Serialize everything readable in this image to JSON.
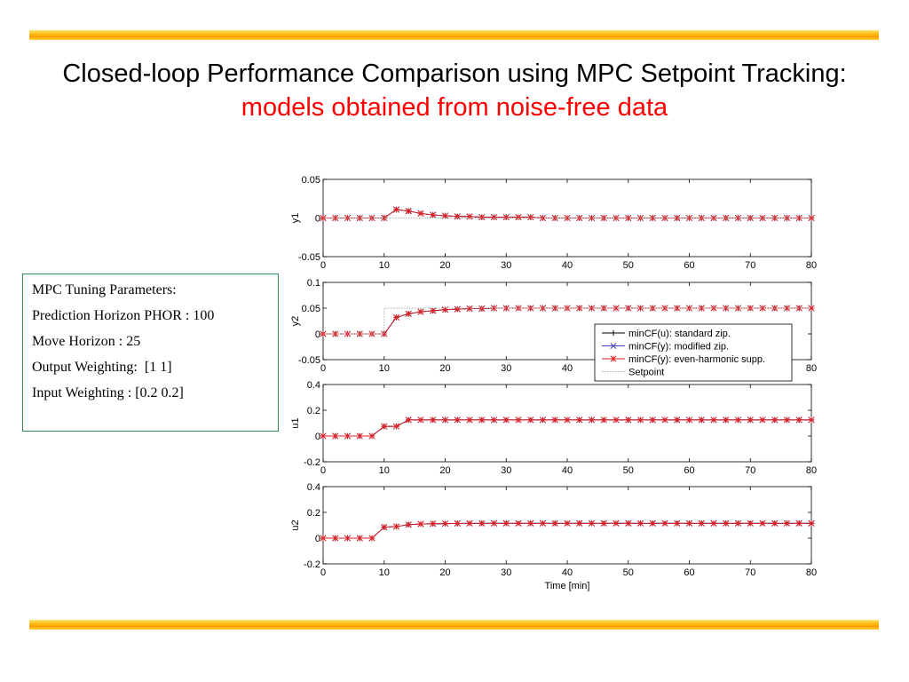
{
  "slide": {
    "title_black": "Closed-loop Performance Comparison using MPC Setpoint Tracking:",
    "title_red": "models obtained from noise-free data"
  },
  "params": {
    "heading": "MPC Tuning Parameters:",
    "lines": [
      "Prediction Horizon PHOR : 100",
      "Move Horizon : 25",
      "Output Weighting:  [1 1]",
      "Input Weighting : [0.2 0.2]"
    ]
  },
  "colors": {
    "accent_red": "#ff0000",
    "box_border": "#2e8b57",
    "series_black": "#000000",
    "series_blue": "#4040c0",
    "series_red": "#e02020",
    "setpoint": "#aaaaaa"
  },
  "chart_data": [
    {
      "type": "line",
      "ylabel": "y1",
      "xlabel": "",
      "xlim": [
        0,
        80
      ],
      "ylim": [
        -0.05,
        0.05
      ],
      "xticks": [
        "0",
        "10",
        "20",
        "30",
        "40",
        "50",
        "60",
        "70",
        "80"
      ],
      "yticks": [
        "0.05",
        "0",
        "-0.05"
      ],
      "x": [
        0,
        2,
        4,
        6,
        8,
        10,
        12,
        14,
        16,
        18,
        20,
        22,
        24,
        26,
        28,
        30,
        32,
        34,
        36,
        38,
        40,
        42,
        44,
        46,
        48,
        50,
        52,
        54,
        56,
        58,
        60,
        62,
        64,
        66,
        68,
        70,
        72,
        74,
        76,
        78,
        80
      ],
      "series": [
        {
          "name": "minCF(u): standard zip.",
          "values": [
            0,
            0,
            0,
            0,
            0,
            0,
            0.011,
            0.009,
            0.006,
            0.004,
            0.003,
            0.002,
            0.002,
            0.001,
            0.001,
            0.001,
            0.001,
            0.001,
            0,
            0,
            0,
            0,
            0,
            0,
            0,
            0,
            0,
            0,
            0,
            0,
            0,
            0,
            0,
            0,
            0,
            0,
            0,
            0,
            0,
            0,
            0
          ]
        },
        {
          "name": "minCF(y): modified zip.",
          "values": [
            0,
            0,
            0,
            0,
            0,
            0,
            0.011,
            0.009,
            0.006,
            0.004,
            0.003,
            0.002,
            0.002,
            0.001,
            0.001,
            0.001,
            0.001,
            0.001,
            0,
            0,
            0,
            0,
            0,
            0,
            0,
            0,
            0,
            0,
            0,
            0,
            0,
            0,
            0,
            0,
            0,
            0,
            0,
            0,
            0,
            0,
            0
          ]
        },
        {
          "name": "minCF(y): even-harmonic supp.",
          "values": [
            0,
            0,
            0,
            0,
            0,
            0,
            0.011,
            0.009,
            0.006,
            0.004,
            0.003,
            0.002,
            0.002,
            0.001,
            0.001,
            0.001,
            0.001,
            0.001,
            0,
            0,
            0,
            0,
            0,
            0,
            0,
            0,
            0,
            0,
            0,
            0,
            0,
            0,
            0,
            0,
            0,
            0,
            0,
            0,
            0,
            0,
            0
          ]
        },
        {
          "name": "Setpoint",
          "step": [
            [
              0,
              0
            ],
            [
              80,
              0
            ]
          ]
        }
      ]
    },
    {
      "type": "line",
      "ylabel": "y2",
      "xlabel": "",
      "xlim": [
        0,
        80
      ],
      "ylim": [
        -0.05,
        0.1
      ],
      "xticks": [
        "0",
        "10",
        "20",
        "30",
        "40",
        "50",
        "60",
        "70",
        "80"
      ],
      "yticks": [
        "0.1",
        "0.05",
        "0",
        "-0.05"
      ],
      "x": [
        0,
        2,
        4,
        6,
        8,
        10,
        12,
        14,
        16,
        18,
        20,
        22,
        24,
        26,
        28,
        30,
        32,
        34,
        36,
        38,
        40,
        42,
        44,
        46,
        48,
        50,
        52,
        54,
        56,
        58,
        60,
        62,
        64,
        66,
        68,
        70,
        72,
        74,
        76,
        78,
        80
      ],
      "series": [
        {
          "name": "minCF(u): standard zip.",
          "values": [
            0,
            0,
            0,
            0,
            0,
            0,
            0.032,
            0.039,
            0.043,
            0.045,
            0.047,
            0.048,
            0.049,
            0.049,
            0.05,
            0.05,
            0.05,
            0.05,
            0.05,
            0.05,
            0.05,
            0.05,
            0.05,
            0.05,
            0.05,
            0.05,
            0.05,
            0.05,
            0.05,
            0.05,
            0.05,
            0.05,
            0.05,
            0.05,
            0.05,
            0.05,
            0.05,
            0.05,
            0.05,
            0.05,
            0.05
          ]
        },
        {
          "name": "minCF(y): modified zip.",
          "values": [
            0,
            0,
            0,
            0,
            0,
            0,
            0.032,
            0.039,
            0.043,
            0.045,
            0.047,
            0.048,
            0.049,
            0.049,
            0.05,
            0.05,
            0.05,
            0.05,
            0.05,
            0.05,
            0.05,
            0.05,
            0.05,
            0.05,
            0.05,
            0.05,
            0.05,
            0.05,
            0.05,
            0.05,
            0.05,
            0.05,
            0.05,
            0.05,
            0.05,
            0.05,
            0.05,
            0.05,
            0.05,
            0.05,
            0.05
          ]
        },
        {
          "name": "minCF(y): even-harmonic supp.",
          "values": [
            0,
            0,
            0,
            0,
            0,
            0,
            0.032,
            0.039,
            0.043,
            0.045,
            0.047,
            0.048,
            0.049,
            0.049,
            0.05,
            0.05,
            0.05,
            0.05,
            0.05,
            0.05,
            0.05,
            0.05,
            0.05,
            0.05,
            0.05,
            0.05,
            0.05,
            0.05,
            0.05,
            0.05,
            0.05,
            0.05,
            0.05,
            0.05,
            0.05,
            0.05,
            0.05,
            0.05,
            0.05,
            0.05,
            0.05
          ]
        },
        {
          "name": "Setpoint",
          "step": [
            [
              0,
              0
            ],
            [
              10,
              0
            ],
            [
              10,
              0.05
            ],
            [
              80,
              0.05
            ]
          ]
        }
      ],
      "legend": {
        "placement": "right",
        "entries": [
          "minCF(u): standard zip.",
          "minCF(y): modified zip.",
          "minCF(y): even-harmonic supp.",
          "Setpoint"
        ]
      }
    },
    {
      "type": "line",
      "ylabel": "u1",
      "xlabel": "",
      "xlim": [
        0,
        80
      ],
      "ylim": [
        -0.2,
        0.4
      ],
      "xticks": [
        "0",
        "10",
        "20",
        "30",
        "40",
        "50",
        "60",
        "70",
        "80"
      ],
      "yticks": [
        "0.4",
        "0.2",
        "0",
        "-0.2"
      ],
      "x": [
        0,
        2,
        4,
        6,
        8,
        10,
        12,
        14,
        16,
        18,
        20,
        22,
        24,
        26,
        28,
        30,
        32,
        34,
        36,
        38,
        40,
        42,
        44,
        46,
        48,
        50,
        52,
        54,
        56,
        58,
        60,
        62,
        64,
        66,
        68,
        70,
        72,
        74,
        76,
        78,
        80
      ],
      "series": [
        {
          "name": "minCF(u): standard zip.",
          "values": [
            0,
            0,
            0,
            0,
            0,
            0.075,
            0.075,
            0.125,
            0.125,
            0.125,
            0.125,
            0.125,
            0.125,
            0.125,
            0.125,
            0.125,
            0.125,
            0.125,
            0.125,
            0.125,
            0.125,
            0.125,
            0.125,
            0.125,
            0.125,
            0.125,
            0.125,
            0.125,
            0.125,
            0.125,
            0.125,
            0.125,
            0.125,
            0.125,
            0.125,
            0.125,
            0.125,
            0.125,
            0.125,
            0.125,
            0.125
          ]
        },
        {
          "name": "minCF(y): modified zip.",
          "values": [
            0,
            0,
            0,
            0,
            0,
            0.075,
            0.075,
            0.125,
            0.125,
            0.125,
            0.125,
            0.125,
            0.125,
            0.125,
            0.125,
            0.125,
            0.125,
            0.125,
            0.125,
            0.125,
            0.125,
            0.125,
            0.125,
            0.125,
            0.125,
            0.125,
            0.125,
            0.125,
            0.125,
            0.125,
            0.125,
            0.125,
            0.125,
            0.125,
            0.125,
            0.125,
            0.125,
            0.125,
            0.125,
            0.125,
            0.125
          ]
        },
        {
          "name": "minCF(y): even-harmonic supp.",
          "values": [
            0,
            0,
            0,
            0,
            0,
            0.075,
            0.075,
            0.125,
            0.125,
            0.125,
            0.125,
            0.125,
            0.125,
            0.125,
            0.125,
            0.125,
            0.125,
            0.125,
            0.125,
            0.125,
            0.125,
            0.125,
            0.125,
            0.125,
            0.125,
            0.125,
            0.125,
            0.125,
            0.125,
            0.125,
            0.125,
            0.125,
            0.125,
            0.125,
            0.125,
            0.125,
            0.125,
            0.125,
            0.125,
            0.125,
            0.125
          ]
        }
      ]
    },
    {
      "type": "line",
      "ylabel": "u2",
      "xlabel": "Time [min]",
      "xlim": [
        0,
        80
      ],
      "ylim": [
        -0.2,
        0.4
      ],
      "xticks": [
        "0",
        "10",
        "20",
        "30",
        "40",
        "50",
        "60",
        "70",
        "80"
      ],
      "yticks": [
        "0.4",
        "0.2",
        "0",
        "-0.2"
      ],
      "x": [
        0,
        2,
        4,
        6,
        8,
        10,
        12,
        14,
        16,
        18,
        20,
        22,
        24,
        26,
        28,
        30,
        32,
        34,
        36,
        38,
        40,
        42,
        44,
        46,
        48,
        50,
        52,
        54,
        56,
        58,
        60,
        62,
        64,
        66,
        68,
        70,
        72,
        74,
        76,
        78,
        80
      ],
      "series": [
        {
          "name": "minCF(u): standard zip.",
          "values": [
            0,
            0,
            0,
            0,
            0,
            0.085,
            0.09,
            0.105,
            0.11,
            0.112,
            0.113,
            0.114,
            0.115,
            0.115,
            0.115,
            0.115,
            0.115,
            0.115,
            0.115,
            0.115,
            0.115,
            0.115,
            0.115,
            0.115,
            0.115,
            0.115,
            0.115,
            0.115,
            0.115,
            0.115,
            0.115,
            0.115,
            0.115,
            0.115,
            0.115,
            0.115,
            0.115,
            0.115,
            0.115,
            0.115,
            0.115
          ]
        },
        {
          "name": "minCF(y): modified zip.",
          "values": [
            0,
            0,
            0,
            0,
            0,
            0.085,
            0.09,
            0.105,
            0.11,
            0.112,
            0.113,
            0.114,
            0.115,
            0.115,
            0.115,
            0.115,
            0.115,
            0.115,
            0.115,
            0.115,
            0.115,
            0.115,
            0.115,
            0.115,
            0.115,
            0.115,
            0.115,
            0.115,
            0.115,
            0.115,
            0.115,
            0.115,
            0.115,
            0.115,
            0.115,
            0.115,
            0.115,
            0.115,
            0.115,
            0.115,
            0.115
          ]
        },
        {
          "name": "minCF(y): even-harmonic supp.",
          "values": [
            0,
            0,
            0,
            0,
            0,
            0.085,
            0.09,
            0.105,
            0.11,
            0.112,
            0.113,
            0.114,
            0.115,
            0.115,
            0.115,
            0.115,
            0.115,
            0.115,
            0.115,
            0.115,
            0.115,
            0.115,
            0.115,
            0.115,
            0.115,
            0.115,
            0.115,
            0.115,
            0.115,
            0.115,
            0.115,
            0.115,
            0.115,
            0.115,
            0.115,
            0.115,
            0.115,
            0.115,
            0.115,
            0.115,
            0.115
          ]
        }
      ]
    }
  ]
}
